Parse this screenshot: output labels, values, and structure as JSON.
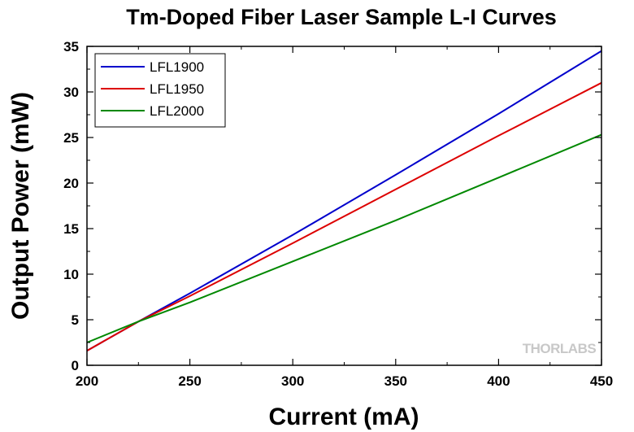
{
  "chart_data": {
    "type": "line",
    "title": "Tm-Doped Fiber Laser Sample L-I Curves",
    "xlabel": "Current (mA)",
    "ylabel": "Output Power (mW)",
    "xlim": [
      200,
      450
    ],
    "ylim": [
      0,
      35
    ],
    "xticks": [
      200,
      250,
      300,
      350,
      400,
      450
    ],
    "yticks": [
      0,
      5,
      10,
      15,
      20,
      25,
      30,
      35
    ],
    "grid": false,
    "legend_position": "top-left",
    "series": [
      {
        "name": "LFL1900",
        "color": "#0000cc",
        "x": [
          200,
          225,
          250,
          300,
          350,
          400,
          450
        ],
        "y": [
          1.6,
          4.8,
          7.9,
          14.3,
          20.9,
          27.6,
          34.5
        ]
      },
      {
        "name": "LFL1950",
        "color": "#dd0000",
        "x": [
          200,
          225,
          250,
          300,
          350,
          400,
          450
        ],
        "y": [
          1.6,
          4.8,
          7.6,
          13.4,
          19.3,
          25.2,
          31.0
        ]
      },
      {
        "name": "LFL2000",
        "color": "#008800",
        "x": [
          200,
          225,
          250,
          300,
          350,
          400,
          450
        ],
        "y": [
          2.5,
          4.8,
          6.9,
          11.4,
          15.9,
          20.6,
          25.3
        ]
      }
    ],
    "watermark": "THORLABS"
  }
}
